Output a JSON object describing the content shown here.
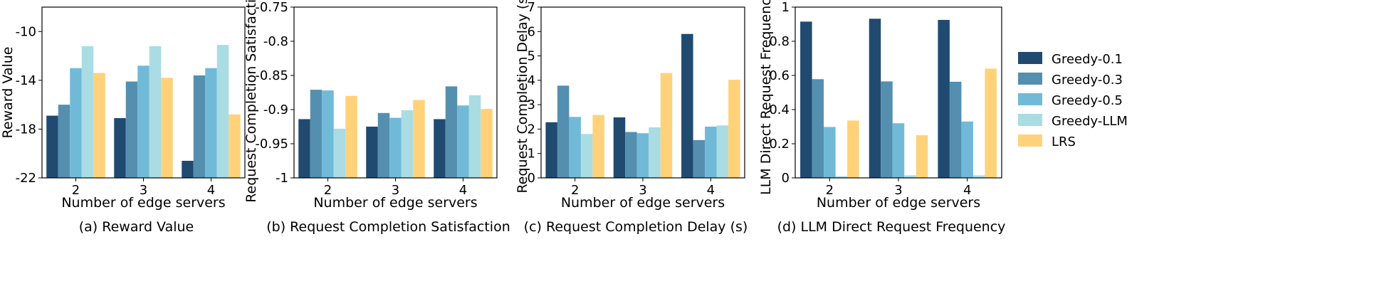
{
  "colors": {
    "Greedy-0.1": "#204a70",
    "Greedy-0.3": "#548fb0",
    "Greedy-0.5": "#70bad8",
    "Greedy-LLM": "#a9dce3",
    "LRS": "#ffd27a"
  },
  "legend": {
    "entries": [
      "Greedy-0.1",
      "Greedy-0.3",
      "Greedy-0.5",
      "Greedy-LLM",
      "LRS"
    ]
  },
  "chart_data": [
    {
      "type": "bar",
      "caption": "(a) Reward Value",
      "xlabel": "Number of edge servers",
      "ylabel": "Reward Value",
      "categories": [
        "2",
        "3",
        "4"
      ],
      "ylim": [
        -22,
        -8
      ],
      "yticks": [
        -22,
        -18,
        -14,
        -10
      ],
      "ytick_labels": [
        "-22",
        "-18",
        "-14",
        "-10"
      ],
      "series": [
        {
          "name": "Greedy-0.1",
          "values": [
            -16.9,
            -17.1,
            -20.6
          ]
        },
        {
          "name": "Greedy-0.3",
          "values": [
            -16.0,
            -14.1,
            -13.6
          ]
        },
        {
          "name": "Greedy-0.5",
          "values": [
            -13.0,
            -12.8,
            -13.0
          ]
        },
        {
          "name": "Greedy-LLM",
          "values": [
            -11.2,
            -11.2,
            -11.1
          ]
        },
        {
          "name": "LRS",
          "values": [
            -13.4,
            -13.8,
            -16.8
          ]
        }
      ]
    },
    {
      "type": "bar",
      "caption": "(b) Request Completion Satisfaction",
      "xlabel": "Number of edge servers",
      "ylabel": "Request Completion Satisfaction",
      "categories": [
        "2",
        "3",
        "4"
      ],
      "ylim": [
        -1,
        -0.75
      ],
      "yticks": [
        -1,
        -0.95,
        -0.9,
        -0.85,
        -0.8,
        -0.75
      ],
      "ytick_labels": [
        "-1",
        "-0.95",
        "-0.9",
        "-0.85",
        "-0.8",
        "-0.75"
      ],
      "series": [
        {
          "name": "Greedy-0.1",
          "values": [
            -0.914,
            -0.925,
            -0.914
          ]
        },
        {
          "name": "Greedy-0.3",
          "values": [
            -0.871,
            -0.905,
            -0.866
          ]
        },
        {
          "name": "Greedy-0.5",
          "values": [
            -0.872,
            -0.912,
            -0.894
          ]
        },
        {
          "name": "Greedy-LLM",
          "values": [
            -0.928,
            -0.901,
            -0.879
          ]
        },
        {
          "name": "LRS",
          "values": [
            -0.88,
            -0.886,
            -0.899
          ]
        }
      ]
    },
    {
      "type": "bar",
      "caption": "(c) Request Completion Delay (s)",
      "xlabel": "Number of edge servers",
      "ylabel": "Request Completion Delay (s)",
      "categories": [
        "2",
        "3",
        "4"
      ],
      "ylim": [
        0,
        7
      ],
      "yticks": [
        0,
        1,
        2,
        3,
        4,
        5,
        6,
        7
      ],
      "ytick_labels": [
        "0",
        "1",
        "2",
        "3",
        "4",
        "5",
        "6",
        "7"
      ],
      "series": [
        {
          "name": "Greedy-0.1",
          "values": [
            2.28,
            2.48,
            5.9
          ]
        },
        {
          "name": "Greedy-0.3",
          "values": [
            3.78,
            1.88,
            1.55
          ]
        },
        {
          "name": "Greedy-0.5",
          "values": [
            2.5,
            1.83,
            2.1
          ]
        },
        {
          "name": "Greedy-LLM",
          "values": [
            1.8,
            2.07,
            2.15
          ]
        },
        {
          "name": "LRS",
          "values": [
            2.58,
            4.3,
            4.02
          ]
        }
      ]
    },
    {
      "type": "bar",
      "caption": "(d) LLM Direct Request Frequency",
      "xlabel": "Number of edge servers",
      "ylabel": "LLM Direct Request Frequency",
      "categories": [
        "2",
        "3",
        "4"
      ],
      "ylim": [
        0,
        1
      ],
      "yticks": [
        0,
        0.2,
        0.4,
        0.6,
        0.8,
        1
      ],
      "ytick_labels": [
        "0",
        "0.2",
        "0.4",
        "0.6",
        "0.8",
        "1"
      ],
      "series": [
        {
          "name": "Greedy-0.1",
          "values": [
            0.915,
            0.932,
            0.925
          ]
        },
        {
          "name": "Greedy-0.3",
          "values": [
            0.578,
            0.565,
            0.563
          ]
        },
        {
          "name": "Greedy-0.5",
          "values": [
            0.298,
            0.32,
            0.33
          ]
        },
        {
          "name": "Greedy-LLM",
          "values": [
            0.01,
            0.015,
            0.015
          ]
        },
        {
          "name": "LRS",
          "values": [
            0.336,
            0.25,
            0.64
          ]
        }
      ]
    }
  ]
}
